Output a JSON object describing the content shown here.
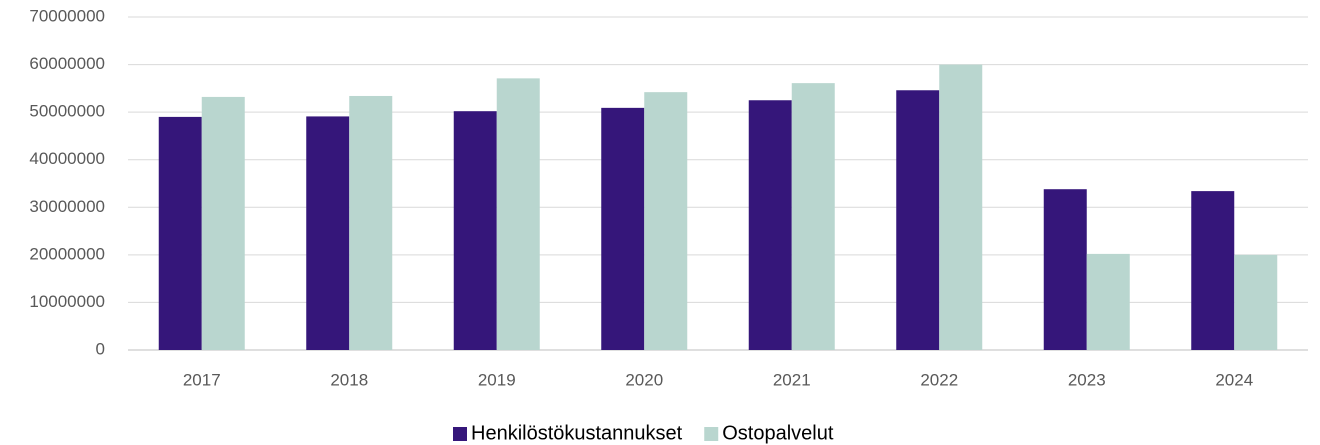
{
  "chart_data": {
    "type": "bar",
    "categories": [
      "2017",
      "2018",
      "2019",
      "2020",
      "2021",
      "2022",
      "2023",
      "2024"
    ],
    "series": [
      {
        "name": "Henkilöstökustannukset",
        "color": "#35167a",
        "values": [
          49000000,
          49100000,
          50200000,
          50900000,
          52500000,
          54600000,
          33800000,
          33400000
        ]
      },
      {
        "name": "Ostopalvelut",
        "color": "#b9d6cf",
        "values": [
          53200000,
          53400000,
          57100000,
          54200000,
          56100000,
          60000000,
          20200000,
          20000000
        ]
      }
    ],
    "ylim": [
      0,
      70000000
    ],
    "yticks": [
      0,
      10000000,
      20000000,
      30000000,
      40000000,
      50000000,
      60000000,
      70000000
    ],
    "grid": true,
    "legend": "bottom"
  }
}
